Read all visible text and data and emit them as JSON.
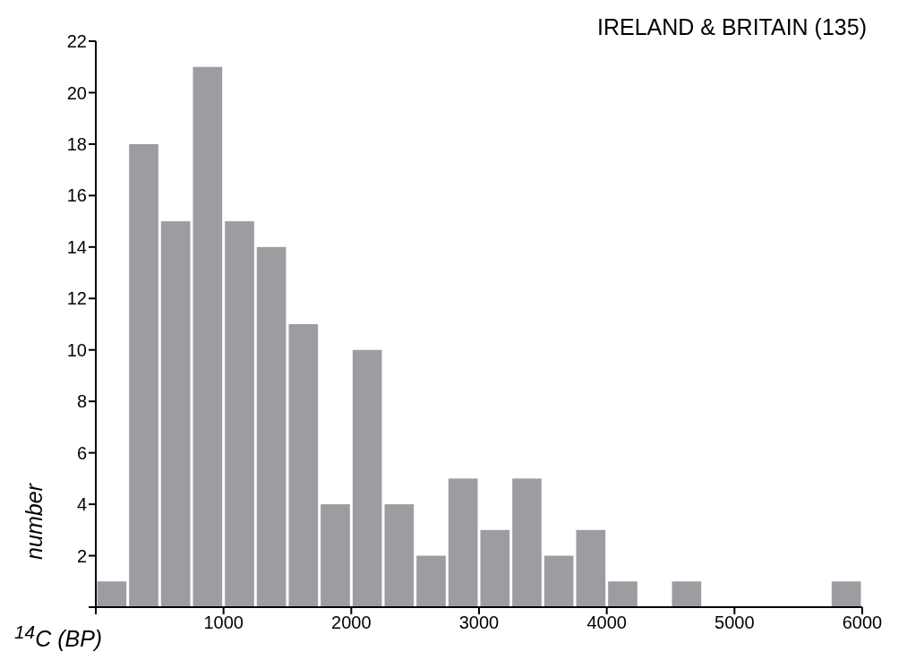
{
  "chart_data": {
    "type": "histogram",
    "title": "IRELAND & BRITAIN (135)",
    "xlabel": "$^{14}$C (BP)",
    "ylabel": "number",
    "bins": [
      0,
      250,
      500,
      750,
      1000,
      1250,
      1500,
      1750,
      2000,
      2250,
      2500,
      2750,
      3000,
      3250,
      3500,
      3750,
      4000,
      4250,
      4500,
      4750,
      5000,
      5250,
      5500,
      5750,
      6000
    ],
    "values": [
      1,
      18,
      15,
      21,
      15,
      14,
      11,
      4,
      10,
      4,
      2,
      5,
      3,
      5,
      2,
      3,
      1,
      0,
      1,
      0,
      0,
      0,
      0,
      1
    ],
    "color": "#9d9ca0",
    "xlim": [
      0,
      6000
    ],
    "xticks": [
      {
        "value": 0,
        "label": null
      },
      1000,
      2000,
      3000,
      4000,
      5000,
      6000
    ],
    "ylim": [
      0,
      22
    ],
    "yticks": [
      {
        "value": 0,
        "label": null
      },
      2,
      4,
      6,
      8,
      10,
      12,
      14,
      16,
      18,
      20,
      22
    ],
    "grid": false
  }
}
